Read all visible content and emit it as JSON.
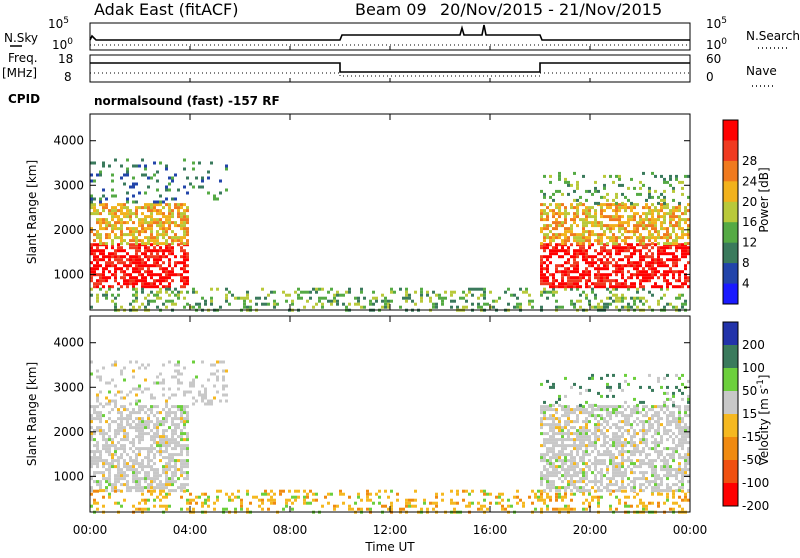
{
  "header": {
    "title": "Adak East (fitACF)",
    "beam": "Beam 09",
    "date_range": "20/Nov/2015 - 21/Nov/2015",
    "cpid_label": "CPID",
    "cpid_text": "normalsound (fast) -157 RF"
  },
  "noise_panel": {
    "left_label": "N.Sky",
    "right_label": "N.Search",
    "left_ticks": [
      "10^5",
      "10^0"
    ],
    "right_ticks": [
      "10^5",
      "10^0"
    ]
  },
  "freq_panel": {
    "left_label_top": "Freq.",
    "left_label_bottom": "[MHz]",
    "right_label": "Nave",
    "left_ticks": [
      "18",
      "8"
    ],
    "right_ticks": [
      "60",
      "0"
    ]
  },
  "colors": {
    "power": [
      "#1a1aff",
      "#2244aa",
      "#3a7a5c",
      "#55aa44",
      "#b9c93a",
      "#f2b21c",
      "#f07a1e",
      "#f03a20",
      "#ff0000"
    ],
    "velocity": [
      "#ff0000",
      "#f05010",
      "#f08a10",
      "#f5b820",
      "#c8c8c8",
      "#6ccf3c",
      "#3a7a5c",
      "#2233aa"
    ]
  },
  "chart_data": [
    {
      "type": "heatmap",
      "title": "",
      "xlabel": "",
      "ylabel": "Slant Range [km]",
      "x_ticks": [
        "00:00",
        "04:00",
        "08:00",
        "12:00",
        "16:00",
        "20:00",
        "00:00"
      ],
      "y_ticks": [
        "1000",
        "2000",
        "3000",
        "4000"
      ],
      "ylim": [
        200,
        4600
      ],
      "colorbar_label": "Power [dB]",
      "colorbar_ticks": [
        "4",
        "8",
        "12",
        "16",
        "20",
        "24",
        "28"
      ],
      "regions": [
        {
          "t": [
            0,
            3.9
          ],
          "range": [
            700,
            1700
          ],
          "level": 8
        },
        {
          "t": [
            0,
            3.9
          ],
          "range": [
            1700,
            2600
          ],
          "level": 5
        },
        {
          "t": [
            0,
            5.5
          ],
          "range": [
            2600,
            3600
          ],
          "level": 2
        },
        {
          "t": [
            0,
            24
          ],
          "range": [
            200,
            700
          ],
          "level": 3
        },
        {
          "t": [
            18,
            24
          ],
          "range": [
            700,
            1700
          ],
          "level": 8
        },
        {
          "t": [
            18,
            24
          ],
          "range": [
            1700,
            2600
          ],
          "level": 5
        },
        {
          "t": [
            18,
            24
          ],
          "range": [
            2600,
            3300
          ],
          "level": 3
        }
      ]
    },
    {
      "type": "heatmap",
      "title": "",
      "xlabel": "Time UT",
      "ylabel": "Slant Range [km]",
      "x_ticks": [
        "00:00",
        "04:00",
        "08:00",
        "12:00",
        "16:00",
        "20:00",
        "00:00"
      ],
      "y_ticks": [
        "1000",
        "2000",
        "3000",
        "4000"
      ],
      "ylim": [
        200,
        4600
      ],
      "colorbar_label": "Velocity [m s^-1]",
      "colorbar_ticks": [
        "200",
        "100",
        "50",
        "15",
        "-15",
        "-50",
        "-100",
        "-200"
      ],
      "regions": [
        {
          "t": [
            0,
            3.9
          ],
          "range": [
            700,
            2600
          ],
          "level": 4
        },
        {
          "t": [
            0,
            5.5
          ],
          "range": [
            2600,
            3600
          ],
          "level": 4
        },
        {
          "t": [
            0,
            24
          ],
          "range": [
            200,
            700
          ],
          "level": 3
        },
        {
          "t": [
            18,
            24
          ],
          "range": [
            700,
            2600
          ],
          "level": 4
        },
        {
          "t": [
            18,
            24
          ],
          "range": [
            2600,
            3300
          ],
          "level": 5
        }
      ]
    }
  ]
}
